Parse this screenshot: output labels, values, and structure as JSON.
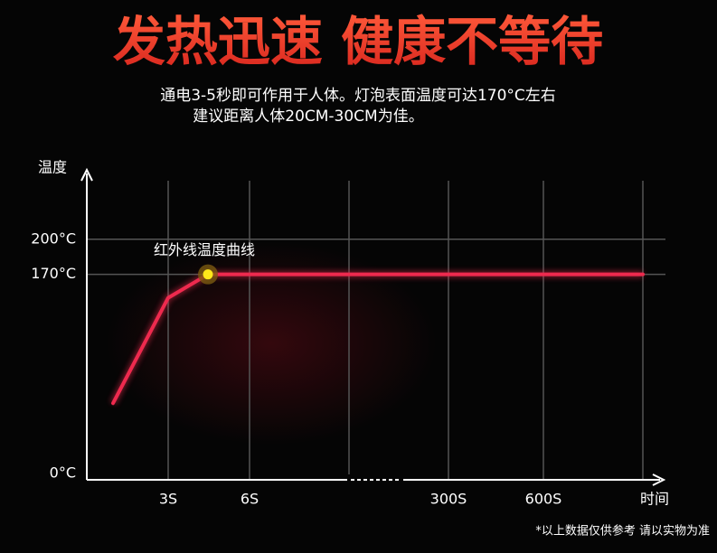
{
  "chart_data": {
    "type": "line",
    "title": "发热迅速 健康不等待",
    "subtitle": [
      "通电3-5秒即可作用于人体。灯泡表面温度可达170°C左右",
      "建议距离人体20CM-30CM为佳。"
    ],
    "y_label": "温度",
    "x_label": "时间",
    "annotation": "红外线温度曲线",
    "note": "*以上数据仅供参考 请以实物为准",
    "categories": [
      null,
      "3S",
      null,
      "6S",
      null,
      "300S",
      "600S",
      null
    ],
    "series": [
      {
        "color": "#ee2a4e",
        "values": [
          60,
          150,
          170,
          170,
          170,
          170,
          170,
          170
        ]
      }
    ],
    "ylim": [
      0,
      250
    ],
    "yticks": [
      {
        "value": 0,
        "label": "0°C"
      },
      {
        "value": 170,
        "label": "170°C"
      },
      {
        "value": 200,
        "label": "200°C"
      }
    ],
    "grid": true
  }
}
